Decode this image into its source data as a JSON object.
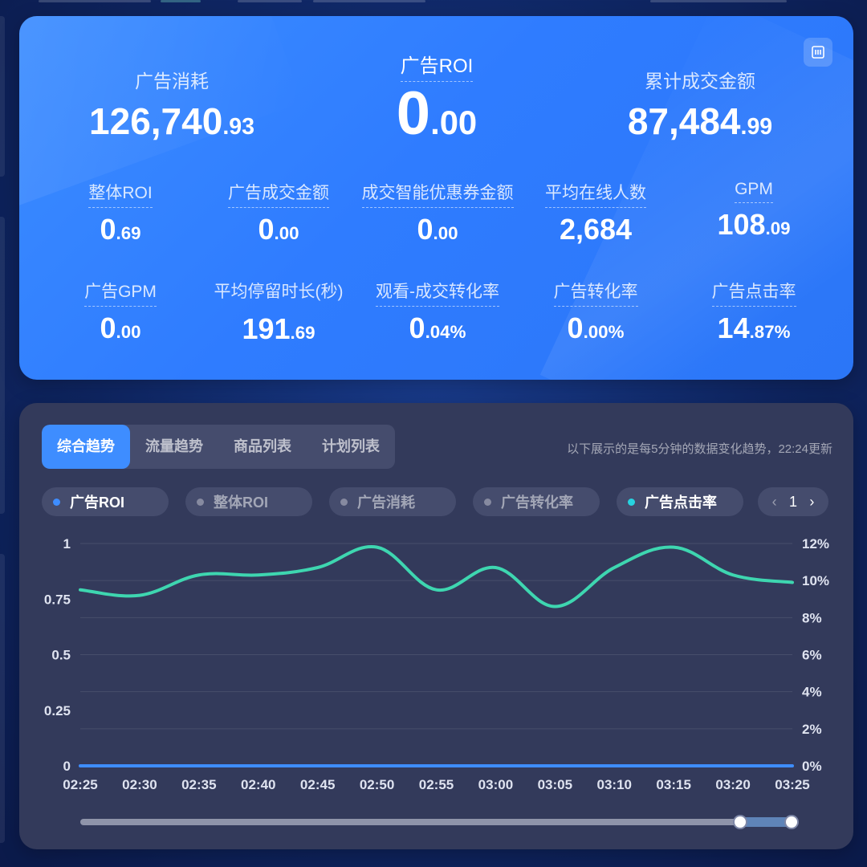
{
  "kpi": {
    "headline": [
      {
        "label": "广告消耗",
        "int": "126,740",
        "dec": ".93"
      },
      {
        "label": "广告ROI",
        "int": "0",
        "dec": ".00"
      },
      {
        "label": "累计成交金额",
        "int": "87,484",
        "dec": ".99"
      }
    ],
    "row1": [
      {
        "label": "整体ROI",
        "int": "0",
        "dec": ".69"
      },
      {
        "label": "广告成交金额",
        "int": "0",
        "dec": ".00"
      },
      {
        "label": "成交智能优惠券金额",
        "int": "0",
        "dec": ".00"
      },
      {
        "label": "平均在线人数",
        "int": "2,684",
        "dec": ""
      },
      {
        "label": "GPM",
        "int": "108",
        "dec": ".09"
      }
    ],
    "row2": [
      {
        "label": "广告GPM",
        "int": "0",
        "dec": ".00"
      },
      {
        "label": "平均停留时长(秒)",
        "int": "191",
        "dec": ".69"
      },
      {
        "label": "观看-成交转化率",
        "int": "0",
        "dec": ".04%"
      },
      {
        "label": "广告转化率",
        "int": "0",
        "dec": ".00%"
      },
      {
        "label": "广告点击率",
        "int": "14",
        "dec": ".87%"
      }
    ]
  },
  "tabs": [
    "综合趋势",
    "流量趋势",
    "商品列表",
    "计划列表"
  ],
  "update_note": "以下展示的是每5分钟的数据变化趋势，22:24更新",
  "legend": [
    {
      "label": "广告ROI",
      "on": true,
      "color": "#3e8dff"
    },
    {
      "label": "整体ROI",
      "on": false,
      "color": "#7a7f98"
    },
    {
      "label": "广告消耗",
      "on": false,
      "color": "#7a7f98"
    },
    {
      "label": "广告转化率",
      "on": false,
      "color": "#7a7f98"
    },
    {
      "label": "广告点击率",
      "on": true,
      "color": "#27d3e0"
    }
  ],
  "pager": {
    "prev": "‹",
    "page": "1",
    "next": "›"
  },
  "chart_data": {
    "type": "line",
    "x": [
      "02:25",
      "02:30",
      "02:35",
      "02:40",
      "02:45",
      "02:50",
      "02:55",
      "03:00",
      "03:05",
      "03:10",
      "03:15",
      "03:20",
      "03:25"
    ],
    "y_left": {
      "ticks": [
        "0",
        "0.25",
        "0.5",
        "0.75",
        "1"
      ],
      "range": [
        0,
        1
      ]
    },
    "y_right": {
      "ticks": [
        "0%",
        "2%",
        "4%",
        "6%",
        "8%",
        "10%",
        "12%"
      ],
      "range": [
        0,
        12
      ]
    },
    "series": [
      {
        "name": "广告ROI",
        "axis": "left",
        "color": "#3e8dff",
        "values": [
          0,
          0,
          0,
          0,
          0,
          0,
          0,
          0,
          0,
          0,
          0,
          0,
          0
        ]
      },
      {
        "name": "广告点击率",
        "axis": "right",
        "color": "#3ed6b0",
        "values": [
          9.5,
          9.2,
          10.3,
          10.3,
          10.7,
          11.8,
          9.5,
          10.7,
          8.6,
          10.7,
          11.8,
          10.3,
          9.9
        ]
      }
    ]
  }
}
